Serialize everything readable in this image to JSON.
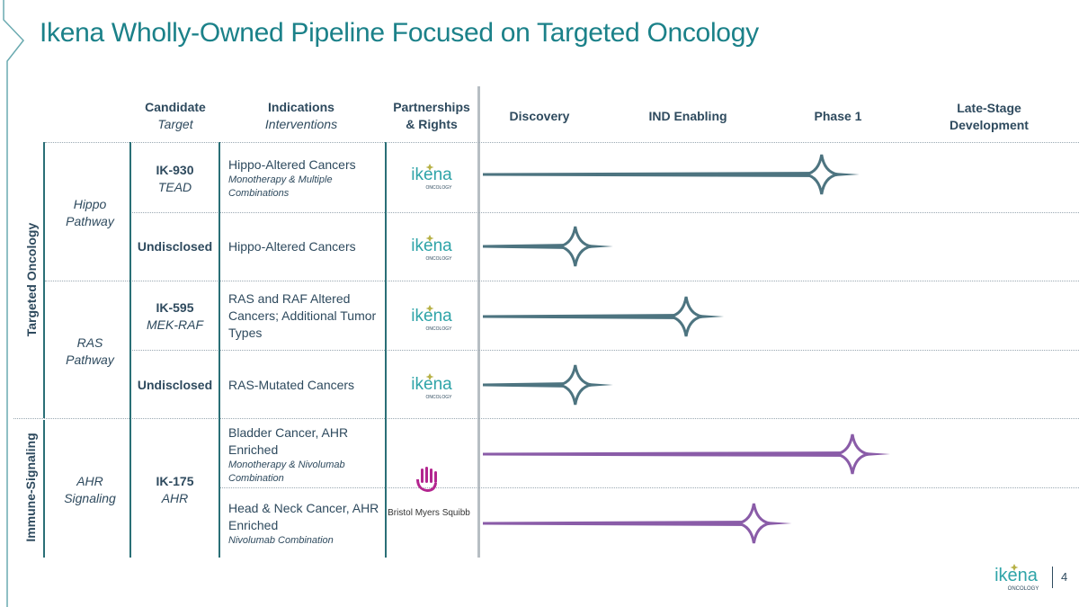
{
  "title": "Ikena Wholly-Owned Pipeline Focused on Targeted Oncology",
  "headers": {
    "candidate": "Candidate",
    "target": "Target",
    "indications": "Indications",
    "interventions": "Interventions",
    "partnerships": "Partnerships",
    "rights": "& Rights"
  },
  "phases": {
    "discovery": "Discovery",
    "ind": "IND Enabling",
    "phase1": "Phase 1",
    "late_line1": "Late-Stage",
    "late_line2": "Development"
  },
  "groups": {
    "targeted": "Targeted Oncology",
    "immune": "Immune-Signaling"
  },
  "pathways": {
    "hippo_1": "Hippo",
    "hippo_2": "Pathway",
    "ras_1": "RAS",
    "ras_2": "Pathway",
    "ahr_1": "AHR",
    "ahr_2": "Signaling"
  },
  "rows": [
    {
      "candidate": "IK-930",
      "target": "TEAD",
      "indication": "Hippo-Altered Cancers",
      "intervention_1": "Monotherapy & Multiple",
      "intervention_2": "Combinations",
      "progress_phase": 2.75
    },
    {
      "candidate": "Undisclosed",
      "indication": "Hippo-Altered Cancers",
      "progress_phase": 0.75
    },
    {
      "candidate": "IK-595",
      "target": "MEK-RAF",
      "indication_1": "RAS and RAF Altered",
      "indication_2": "Cancers; Additional Tumor",
      "indication_3": "Types",
      "progress_phase": 1.65
    },
    {
      "candidate": "Undisclosed",
      "indication": "RAS-Mutated Cancers",
      "progress_phase": 0.75
    },
    {
      "indication_1": "Bladder Cancer, AHR",
      "indication_2": "Enriched",
      "intervention_1": "Monotherapy & Nivolumab",
      "intervention_2": "Combination",
      "progress_phase": 3.0
    },
    {
      "candidate": "IK-175",
      "target": "AHR",
      "indication_1": "Head & Neck Cancer, AHR",
      "indication_2": "Enriched",
      "intervention_1": "Nivolumab Combination",
      "progress_phase": 2.2
    }
  ],
  "partners": {
    "ikena_word": "ikena",
    "ikena_sub": "ONCOLOGY",
    "bms": "Bristol Myers Squibb"
  },
  "footer": {
    "page": "4",
    "logo_word": "ikena",
    "logo_sub": "ONCOLOGY"
  },
  "colors": {
    "teal": "#1b8189",
    "navy": "#2e4a5e",
    "arrow_teal": "#4d7480",
    "arrow_purple": "#8a5ca8",
    "bms_magenta": "#b3258f"
  }
}
